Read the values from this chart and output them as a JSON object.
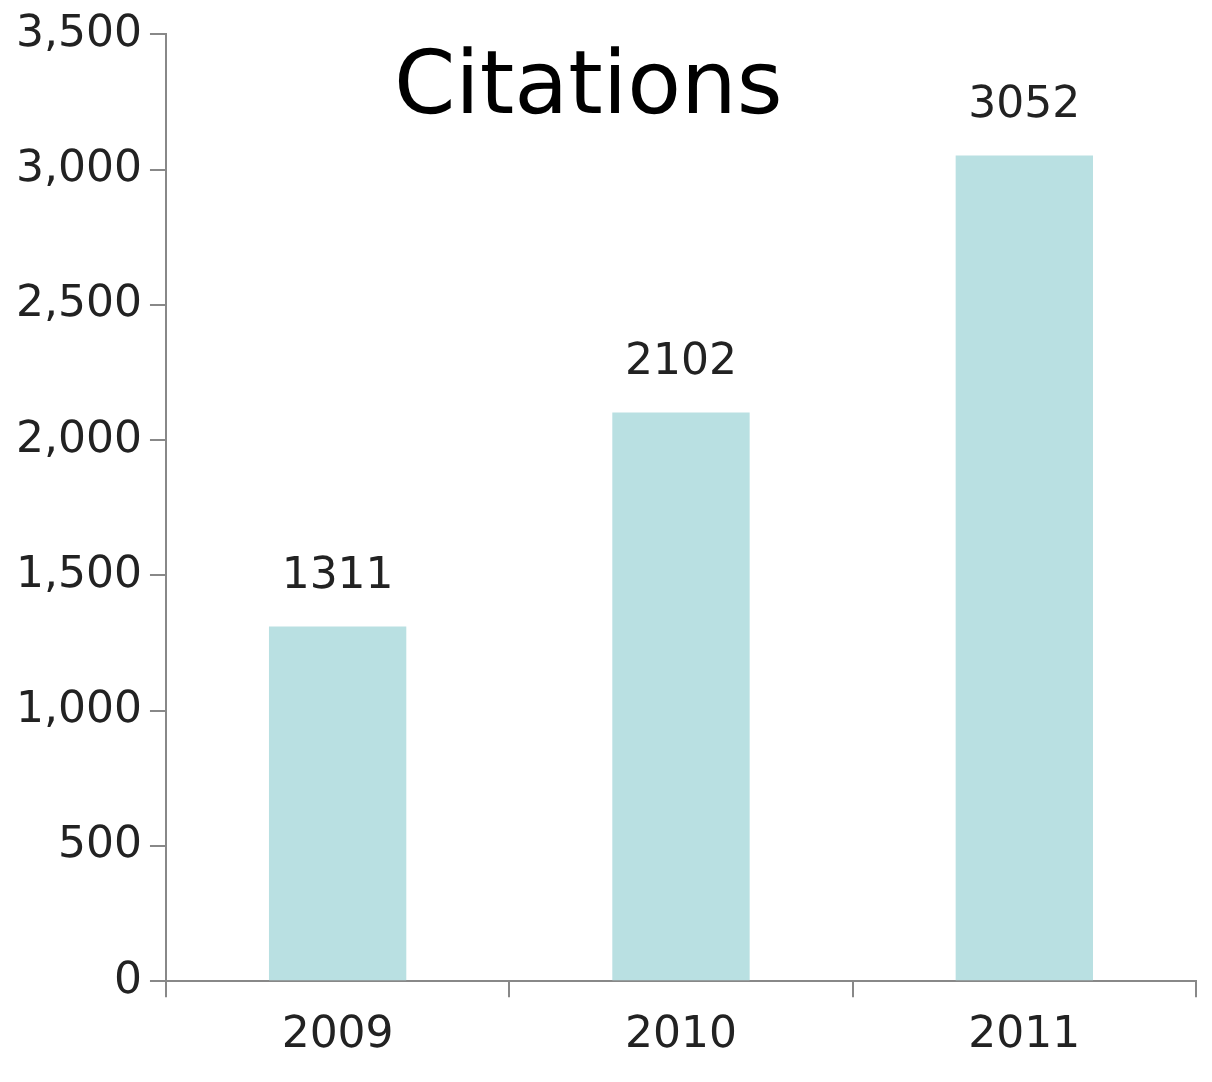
{
  "chart_data": {
    "type": "bar",
    "title": "Citations",
    "categories": [
      "2009",
      "2010",
      "2011"
    ],
    "values": [
      1311,
      2102,
      3052
    ],
    "color": "#b9e0e2",
    "ylim": [
      0,
      3500
    ],
    "yticks": [
      {
        "value": 0,
        "label": "0"
      },
      {
        "value": 500,
        "label": "500"
      },
      {
        "value": 1000,
        "label": "1,000"
      },
      {
        "value": 1500,
        "label": "1,500"
      },
      {
        "value": 2000,
        "label": "2,000"
      },
      {
        "value": 2500,
        "label": "2,500"
      },
      {
        "value": 3000,
        "label": "3,000"
      },
      {
        "value": 3500,
        "label": "3,500"
      }
    ],
    "data_labels": true,
    "grid": false,
    "legend": false
  }
}
